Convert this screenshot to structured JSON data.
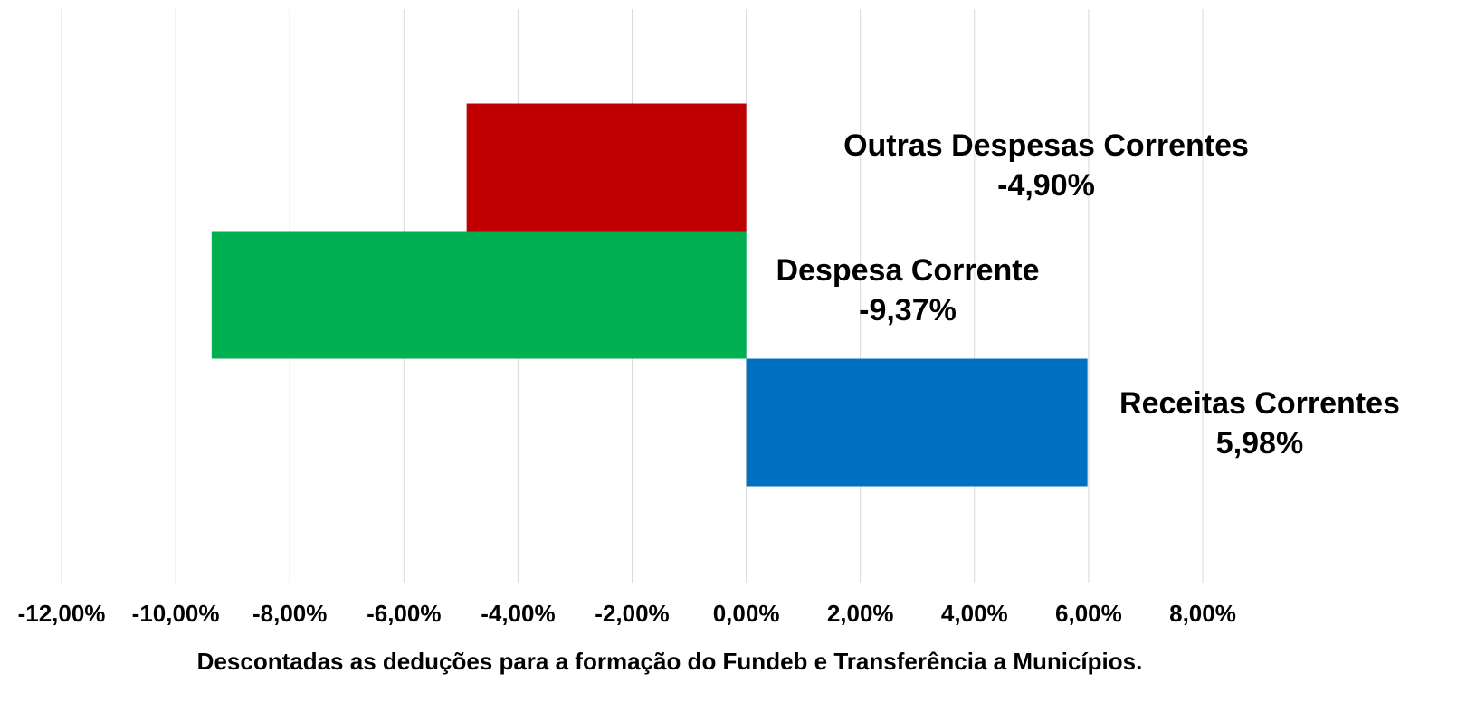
{
  "chart_data": {
    "type": "barh",
    "categories": [
      "Receitas Correntes",
      "Despesa Corrente",
      "Outras Despesas Correntes"
    ],
    "values": [
      5.98,
      -9.37,
      -4.9
    ],
    "value_labels": [
      "5,98%",
      "-9,37%",
      "-4,90%"
    ],
    "colors": [
      "#0070c0",
      "#00b050",
      "#c00000"
    ],
    "xlim": [
      -12,
      8
    ],
    "xticks": [
      {
        "value": -12,
        "label": "-12,00%"
      },
      {
        "value": -10,
        "label": "-10,00%"
      },
      {
        "value": -8,
        "label": "-8,00%"
      },
      {
        "value": -6,
        "label": "-6,00%"
      },
      {
        "value": -4,
        "label": "-4,00%"
      },
      {
        "value": -2,
        "label": "-2,00%"
      },
      {
        "value": 0,
        "label": "0,00%"
      },
      {
        "value": 2,
        "label": "2,00%"
      },
      {
        "value": 4,
        "label": "4,00%"
      },
      {
        "value": 6,
        "label": "6,00%"
      },
      {
        "value": 8,
        "label": "8,00%"
      }
    ],
    "grid": true,
    "note": "Descontadas as deduções para a formação do Fundeb  e Transferência a Municípios."
  }
}
